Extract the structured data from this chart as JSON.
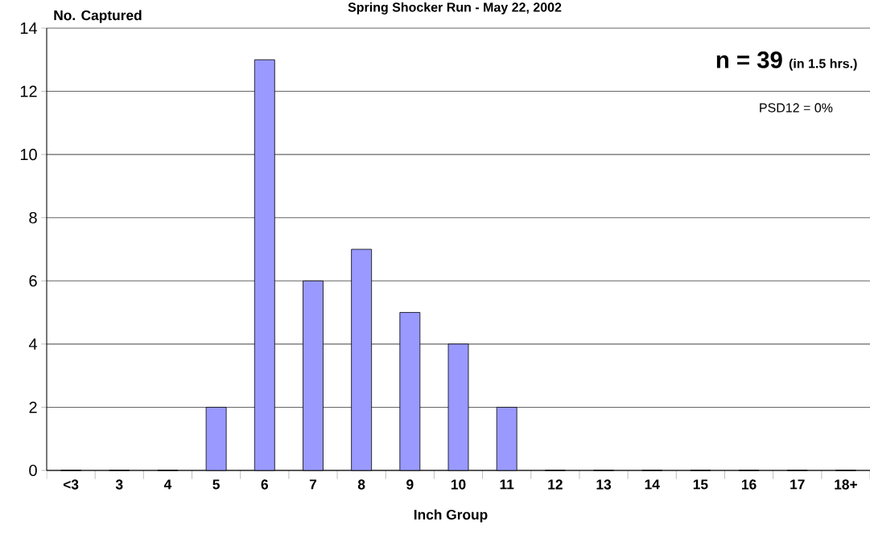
{
  "chart_data": {
    "type": "bar",
    "title": "Spring Shocker Run - May 22, 2002",
    "xlabel": "Inch Group",
    "ylabel": "No. Captured",
    "categories": [
      "<3",
      "3",
      "4",
      "5",
      "6",
      "7",
      "8",
      "9",
      "10",
      "11",
      "12",
      "13",
      "14",
      "15",
      "16",
      "17",
      "18+"
    ],
    "values": [
      0,
      0,
      0,
      2,
      13,
      6,
      7,
      5,
      4,
      2,
      0,
      0,
      0,
      0,
      0,
      0,
      0
    ],
    "color": "#9999ff",
    "ylim": [
      0,
      14
    ],
    "yticks": [
      0,
      2,
      4,
      6,
      8,
      10,
      12,
      14
    ],
    "grid": "y",
    "annotations": [
      "n = 39",
      "(in 1.5 hrs.)",
      "PSD12 = 0%"
    ]
  }
}
